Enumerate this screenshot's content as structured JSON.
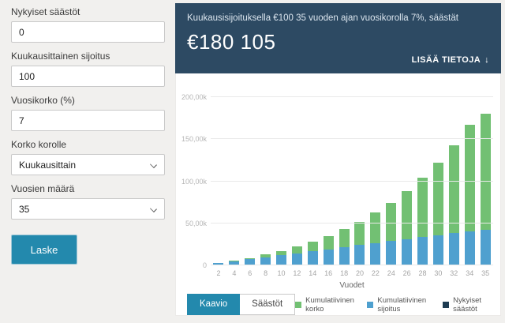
{
  "form": {
    "fields": [
      {
        "label": "Nykyiset säästöt",
        "value": "0",
        "type": "input"
      },
      {
        "label": "Kuukausittainen sijoitus",
        "value": "100",
        "type": "input"
      },
      {
        "label": "Vuosikorko (%)",
        "value": "7",
        "type": "input"
      },
      {
        "label": "Korko korolle",
        "value": "Kuukausittain",
        "type": "select"
      },
      {
        "label": "Vuosien määrä",
        "value": "35",
        "type": "select"
      }
    ],
    "submit_label": "Laske"
  },
  "hero": {
    "caption": "Kuukausisijoituksella €100 35 vuoden ajan vuosikorolla 7%, säästät",
    "amount": "€180 105",
    "more_label": "LISÄÄ TIETOJA",
    "more_icon": "↓"
  },
  "tabs": [
    {
      "label": "Kaavio",
      "active": true
    },
    {
      "label": "Säästöt",
      "active": false
    }
  ],
  "chart_data": {
    "type": "bar",
    "stacked": true,
    "title": "",
    "xlabel": "Vuodet",
    "ylabel": "",
    "ylim": [
      0,
      200000
    ],
    "grid": true,
    "legend_position": "bottom-right",
    "categories": [
      2,
      4,
      6,
      8,
      10,
      12,
      14,
      16,
      18,
      20,
      22,
      24,
      26,
      28,
      30,
      32,
      34,
      35
    ],
    "y_ticks": [
      "200,00k",
      "150,00k",
      "100,00k",
      "50,00k",
      "0"
    ],
    "y_tick_values": [
      200000,
      150000,
      100000,
      50000,
      0
    ],
    "series": [
      {
        "name": "Kumulatiivinen korko",
        "color": "#72c073",
        "values": [
          168,
          721,
          1716,
          3218,
          5309,
          8069,
          11603,
          16026,
          21472,
          28093,
          36065,
          45590,
          56902,
          70268,
          85997,
          104443,
          126012,
          138105
        ]
      },
      {
        "name": "Kumulatiivinen sijoitus",
        "color": "#4fa0cf",
        "values": [
          2400,
          4800,
          7200,
          9600,
          12000,
          14400,
          16800,
          19200,
          21600,
          24000,
          26400,
          28800,
          31200,
          33600,
          36000,
          38400,
          40800,
          42000
        ]
      },
      {
        "name": "Nykyiset säästöt",
        "color": "#1e3c52",
        "values": [
          0,
          0,
          0,
          0,
          0,
          0,
          0,
          0,
          0,
          0,
          0,
          0,
          0,
          0,
          0,
          0,
          0,
          0
        ]
      }
    ]
  },
  "colors": {
    "page_bg": "#f1f0ee",
    "hero_bg": "#2d4a63",
    "accent_teal": "#2389ad",
    "bar_green": "#72c073",
    "bar_blue": "#4fa0cf",
    "bar_navy": "#1e3c52"
  }
}
